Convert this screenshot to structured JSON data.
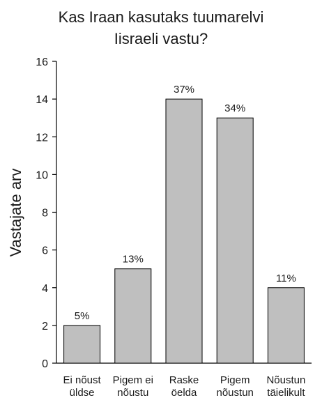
{
  "chart_data": {
    "type": "bar",
    "title_lines": [
      "Kas Iraan kasutaks tuumarelvi",
      "Iisraeli vastu?"
    ],
    "ylabel": "Vastajate arv",
    "xlabel": "",
    "categories": [
      [
        "Ei nõust",
        "üldse"
      ],
      [
        "Pigem ei",
        "nõustu"
      ],
      [
        "Raske",
        "öelda"
      ],
      [
        "Pigem",
        "nõustun"
      ],
      [
        "Nõustun",
        "täielikult"
      ]
    ],
    "values": [
      2,
      5,
      14,
      13,
      4
    ],
    "data_labels": [
      "5%",
      "13%",
      "37%",
      "34%",
      "11%"
    ],
    "ylim": [
      0,
      16
    ],
    "yticks": [
      0,
      2,
      4,
      6,
      8,
      10,
      12,
      14,
      16
    ],
    "grid": false,
    "legend": "none",
    "colors": {
      "bar_fill": "#bfbfbf",
      "bar_stroke": "#000000",
      "axis": "#000000",
      "text": "#1a1a1a"
    }
  }
}
